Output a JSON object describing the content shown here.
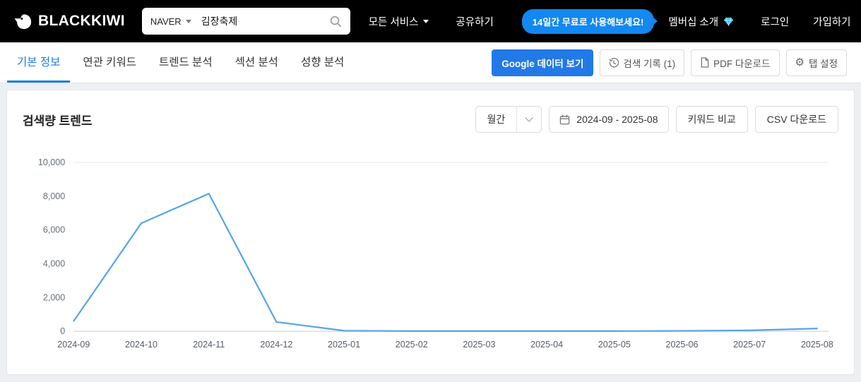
{
  "header": {
    "brand": "BLACKKIWI",
    "search": {
      "engine": "NAVER",
      "query": "김장축제"
    },
    "nav": {
      "all_services": "모든 서비스",
      "share": "공유하기",
      "trial_badge": "14일간 무료로 사용해보세요!",
      "membership": "멤버십 소개",
      "login": "로그인",
      "signup": "가입하기"
    }
  },
  "tabs": {
    "items": [
      {
        "label": "기본 정보",
        "active": true
      },
      {
        "label": "연관 키워드",
        "active": false
      },
      {
        "label": "트렌드 분석",
        "active": false
      },
      {
        "label": "섹션 분석",
        "active": false
      },
      {
        "label": "성향 분석",
        "active": false
      }
    ],
    "actions": {
      "google_data": "Google 데이터 보기",
      "history": "검색 기록 (1)",
      "pdf": "PDF 다운로드",
      "tab_settings": "탭 설정"
    }
  },
  "panel": {
    "title": "검색량 트렌드",
    "period_select": "월간",
    "date_range": "2024-09 - 2025-08",
    "compare_button": "키워드 비교",
    "csv_button": "CSV 다운로드"
  },
  "chart_data": {
    "type": "line",
    "title": "검색량 트렌드",
    "x": [
      "2024-09",
      "2024-10",
      "2024-11",
      "2024-12",
      "2025-01",
      "2025-02",
      "2025-03",
      "2025-04",
      "2025-05",
      "2025-06",
      "2025-07",
      "2025-08"
    ],
    "series": [
      {
        "name": "김장축제",
        "values": [
          600,
          6400,
          8150,
          550,
          30,
          10,
          10,
          10,
          10,
          20,
          50,
          160
        ]
      }
    ],
    "ylim": [
      0,
      10000
    ],
    "yticks": [
      0,
      2000,
      4000,
      6000,
      8000,
      10000
    ],
    "ytick_labels": [
      "0",
      "2,000",
      "4,000",
      "6,000",
      "8,000",
      "10,000"
    ],
    "line_color": "#55a4e8",
    "grid": false,
    "legend": "none"
  },
  "icons": {
    "logo": "kiwi-bird",
    "search": "magnifier",
    "dropdown": "chevron-down",
    "membership": "gem",
    "history": "clock-history",
    "pdf": "document",
    "settings": "gear",
    "calendar": "calendar"
  },
  "colors": {
    "accent_blue": "#1288f0",
    "tab_active": "#1b7ce0",
    "chart_line": "#55a4e8"
  }
}
